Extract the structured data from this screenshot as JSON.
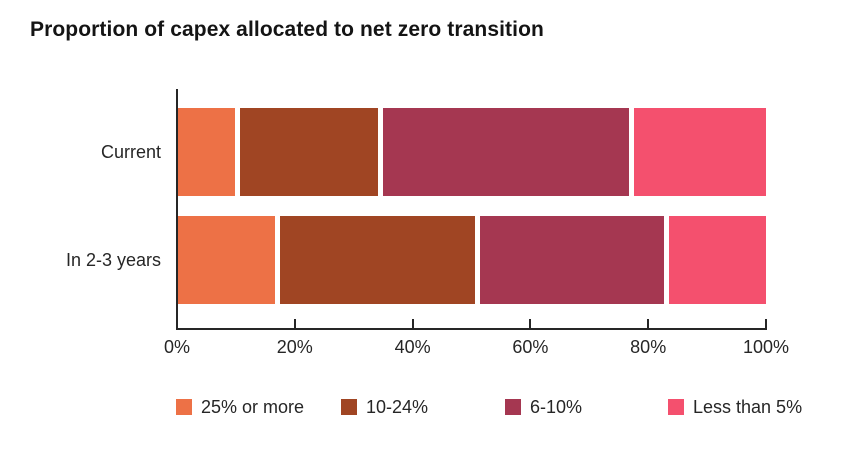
{
  "title": "Proportion of capex allocated to net zero transition",
  "colors": {
    "orange": "#ED7146",
    "brown": "#A04523",
    "maroon": "#A53751",
    "pink": "#F4506E",
    "axis": "#262626",
    "text": "#262626",
    "background": "#FFFFFF"
  },
  "chart_data": {
    "type": "bar",
    "variant": "stacked-horizontal",
    "title": "Proportion of capex allocated to net zero transition",
    "categories": [
      "Current",
      "In 2-3 years"
    ],
    "series": [
      {
        "name": "25% or more",
        "color": "#ED7146",
        "values": [
          10,
          17
        ]
      },
      {
        "name": "10-24%",
        "color": "#A04523",
        "values": [
          24,
          34
        ]
      },
      {
        "name": "6-10%",
        "color": "#A53751",
        "values": [
          43,
          32
        ]
      },
      {
        "name": "Less than 5%",
        "color": "#F4506E",
        "values": [
          23,
          17
        ]
      }
    ],
    "xlim": [
      0,
      100
    ],
    "x_ticks": [
      {
        "label": "0%",
        "value": 0
      },
      {
        "label": "20%",
        "value": 20
      },
      {
        "label": "40%",
        "value": 40
      },
      {
        "label": "60%",
        "value": 60
      },
      {
        "label": "80%",
        "value": 80
      },
      {
        "label": "100%",
        "value": 100
      }
    ],
    "grid": false,
    "legend_position": "bottom"
  }
}
